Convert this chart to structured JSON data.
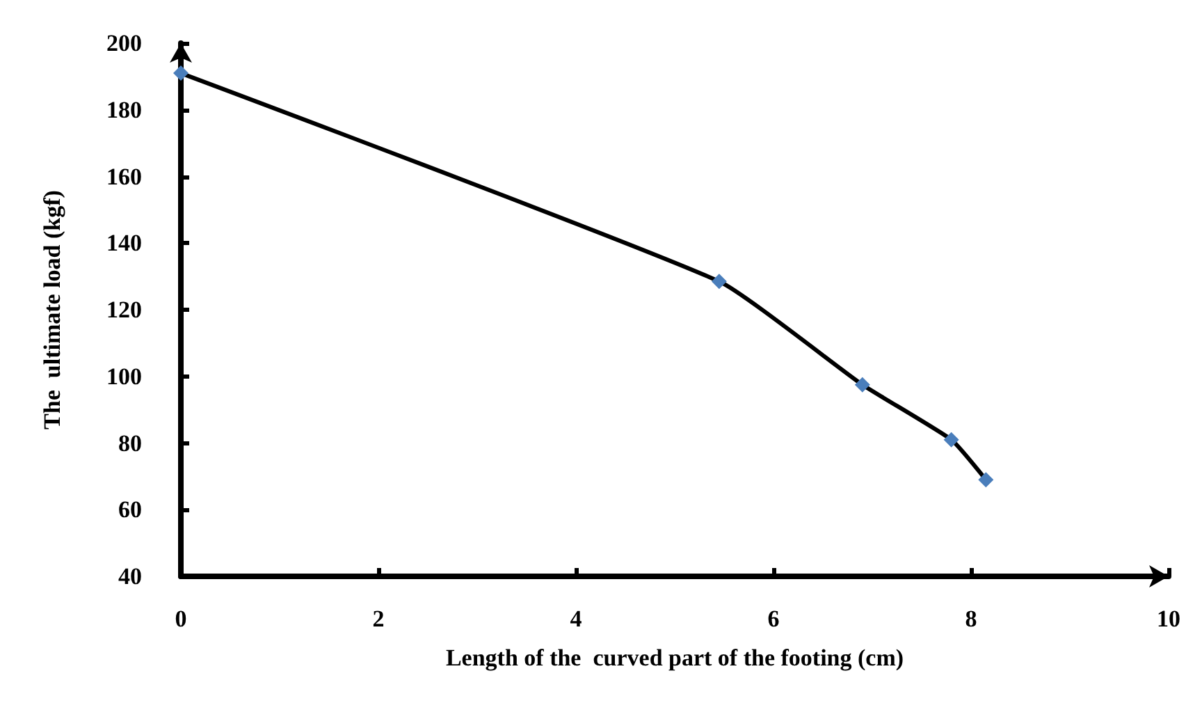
{
  "chart_data": {
    "type": "line",
    "xlabel": "Length of the  curved part of the footing (cm)",
    "ylabel": "The  ultimate load (kgf)",
    "x": [
      0,
      5.45,
      6.9,
      7.8,
      8.15
    ],
    "series": [
      {
        "color": "#4a7ebb",
        "values": [
          191,
          128.5,
          97.5,
          81,
          69
        ]
      }
    ],
    "xlim": [
      0,
      10
    ],
    "xticks": [
      0,
      2,
      4,
      6,
      8,
      10
    ],
    "ylim": [
      40,
      200
    ],
    "yticks": [
      40,
      60,
      80,
      100,
      120,
      140,
      160,
      180,
      200
    ],
    "grid": false,
    "marker": "diamond",
    "line_style": "solid"
  }
}
